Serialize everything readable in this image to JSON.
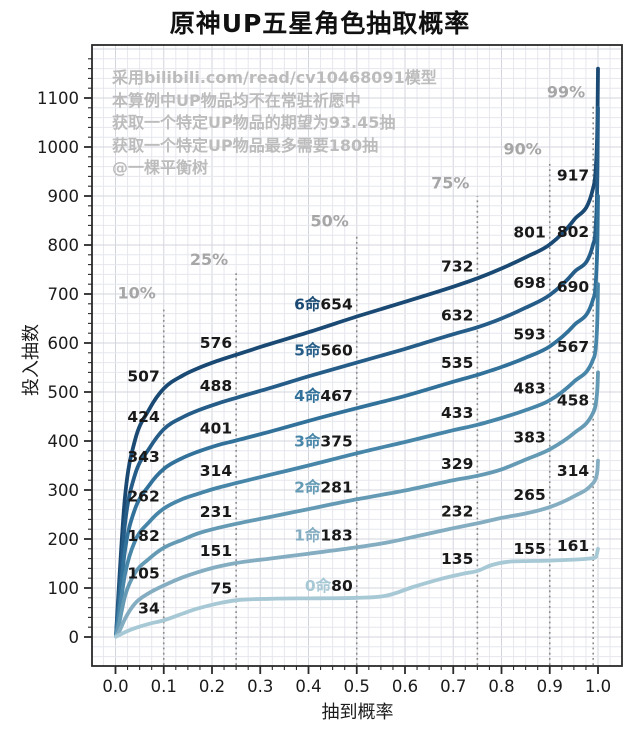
{
  "title": "原神UP五星角色抽取概率",
  "watermark": {
    "line1": "采用bilibili.com/read/cv10468091模型",
    "line2": "本算例中UP物品均不在常驻祈愿中",
    "line3": "获取一个特定UP物品的期望为93.45抽",
    "line4": "获取一个特定UP物品最多需要180抽",
    "line5": "@一棵平衡树"
  },
  "style": {
    "grid_minor": "#e6e7ee",
    "grid_major": "#d3d5de",
    "frame": "#2a2a2a",
    "dash_line": "#8a8a8a",
    "percent_label": "#a6a6a6",
    "value_label": "#191919",
    "tick_label": "#1b1b1b"
  },
  "chart_data": {
    "type": "line",
    "title": "原神UP五星角色抽取概率",
    "xlabel": "抽到概率",
    "ylabel": "投入抽数",
    "xlim": [
      0,
      1.05
    ],
    "ylim": [
      0,
      1210
    ],
    "grid": "minor+major on",
    "legend_position": "inline curve labels at 50% line",
    "x_ticks": [
      "0.0",
      "0.1",
      "0.2",
      "0.3",
      "0.4",
      "0.5",
      "0.6",
      "0.7",
      "0.8",
      "0.9",
      "1.0"
    ],
    "y_ticks": [
      0,
      100,
      200,
      300,
      400,
      500,
      600,
      700,
      800,
      900,
      1000,
      1100
    ],
    "percentile_lines": [
      {
        "p": 0.1,
        "label": "10%"
      },
      {
        "p": 0.25,
        "label": "25%"
      },
      {
        "p": 0.5,
        "label": "50%"
      },
      {
        "p": 0.75,
        "label": "75%"
      },
      {
        "p": 0.9,
        "label": "90%"
      },
      {
        "p": 0.99,
        "label": "99%"
      }
    ],
    "series": [
      {
        "name": "0命",
        "color": "#a7c8d5",
        "values_at_percentiles": [
          34,
          75,
          80,
          135,
          155,
          161
        ],
        "points": [
          [
            0.001,
            1
          ],
          [
            0.008,
            4
          ],
          [
            0.02,
            10
          ],
          [
            0.04,
            18
          ],
          [
            0.07,
            27
          ],
          [
            0.1,
            34
          ],
          [
            0.14,
            48
          ],
          [
            0.17,
            58
          ],
          [
            0.21,
            68
          ],
          [
            0.25,
            75
          ],
          [
            0.32,
            78
          ],
          [
            0.42,
            79
          ],
          [
            0.5,
            80
          ],
          [
            0.56,
            84
          ],
          [
            0.62,
            103
          ],
          [
            0.68,
            120
          ],
          [
            0.72,
            129
          ],
          [
            0.75,
            135
          ],
          [
            0.78,
            147
          ],
          [
            0.82,
            154
          ],
          [
            0.86,
            155
          ],
          [
            0.9,
            156
          ],
          [
            0.95,
            158
          ],
          [
            0.99,
            161
          ],
          [
            0.996,
            164
          ],
          [
            1,
            180
          ]
        ]
      },
      {
        "name": "1命",
        "color": "#84adc1",
        "values_at_percentiles": [
          105,
          151,
          183,
          232,
          265,
          314
        ],
        "points": [
          [
            0.001,
            1
          ],
          [
            0.008,
            12
          ],
          [
            0.02,
            38
          ],
          [
            0.04,
            68
          ],
          [
            0.07,
            90
          ],
          [
            0.1,
            105
          ],
          [
            0.14,
            122
          ],
          [
            0.17,
            132
          ],
          [
            0.21,
            143
          ],
          [
            0.25,
            151
          ],
          [
            0.32,
            160
          ],
          [
            0.4,
            170
          ],
          [
            0.5,
            183
          ],
          [
            0.57,
            194
          ],
          [
            0.63,
            207
          ],
          [
            0.7,
            222
          ],
          [
            0.75,
            232
          ],
          [
            0.8,
            243
          ],
          [
            0.85,
            252
          ],
          [
            0.9,
            265
          ],
          [
            0.95,
            287
          ],
          [
            0.99,
            314
          ],
          [
            0.995,
            323
          ],
          [
            0.999,
            342
          ],
          [
            1,
            360
          ]
        ]
      },
      {
        "name": "2命",
        "color": "#659ab5",
        "values_at_percentiles": [
          182,
          231,
          281,
          329,
          383,
          458
        ],
        "points": [
          [
            0.001,
            1
          ],
          [
            0.008,
            30
          ],
          [
            0.02,
            85
          ],
          [
            0.04,
            130
          ],
          [
            0.07,
            160
          ],
          [
            0.1,
            182
          ],
          [
            0.14,
            199
          ],
          [
            0.17,
            211
          ],
          [
            0.21,
            222
          ],
          [
            0.25,
            231
          ],
          [
            0.32,
            245
          ],
          [
            0.4,
            261
          ],
          [
            0.5,
            281
          ],
          [
            0.6,
            299
          ],
          [
            0.7,
            320
          ],
          [
            0.75,
            329
          ],
          [
            0.8,
            342
          ],
          [
            0.85,
            362
          ],
          [
            0.9,
            383
          ],
          [
            0.95,
            416
          ],
          [
            0.99,
            458
          ],
          [
            0.995,
            474
          ],
          [
            0.999,
            512
          ],
          [
            1,
            540
          ]
        ]
      },
      {
        "name": "3命",
        "color": "#4886a9",
        "values_at_percentiles": [
          262,
          314,
          375,
          433,
          483,
          567
        ],
        "points": [
          [
            0.001,
            1
          ],
          [
            0.008,
            50
          ],
          [
            0.02,
            130
          ],
          [
            0.04,
            195
          ],
          [
            0.07,
            235
          ],
          [
            0.1,
            262
          ],
          [
            0.14,
            282
          ],
          [
            0.17,
            292
          ],
          [
            0.21,
            304
          ],
          [
            0.25,
            314
          ],
          [
            0.32,
            331
          ],
          [
            0.4,
            350
          ],
          [
            0.5,
            375
          ],
          [
            0.6,
            398
          ],
          [
            0.7,
            422
          ],
          [
            0.75,
            433
          ],
          [
            0.8,
            447
          ],
          [
            0.85,
            463
          ],
          [
            0.9,
            483
          ],
          [
            0.95,
            521
          ],
          [
            0.99,
            567
          ],
          [
            0.995,
            588
          ],
          [
            0.999,
            660
          ],
          [
            1,
            720
          ]
        ]
      },
      {
        "name": "4命",
        "color": "#31719a",
        "values_at_percentiles": [
          343,
          401,
          467,
          535,
          593,
          690
        ],
        "points": [
          [
            0.001,
            2
          ],
          [
            0.008,
            70
          ],
          [
            0.02,
            180
          ],
          [
            0.04,
            260
          ],
          [
            0.07,
            310
          ],
          [
            0.1,
            343
          ],
          [
            0.14,
            366
          ],
          [
            0.17,
            378
          ],
          [
            0.21,
            391
          ],
          [
            0.25,
            401
          ],
          [
            0.32,
            419
          ],
          [
            0.4,
            441
          ],
          [
            0.5,
            467
          ],
          [
            0.6,
            492
          ],
          [
            0.7,
            521
          ],
          [
            0.75,
            535
          ],
          [
            0.8,
            551
          ],
          [
            0.85,
            570
          ],
          [
            0.9,
            593
          ],
          [
            0.95,
            636
          ],
          [
            0.99,
            690
          ],
          [
            0.995,
            718
          ],
          [
            0.999,
            820
          ],
          [
            1,
            900
          ]
        ]
      },
      {
        "name": "5命",
        "color": "#255d88",
        "values_at_percentiles": [
          424,
          488,
          560,
          632,
          698,
          802
        ],
        "points": [
          [
            0.001,
            2
          ],
          [
            0.008,
            95
          ],
          [
            0.02,
            235
          ],
          [
            0.04,
            330
          ],
          [
            0.07,
            385
          ],
          [
            0.1,
            424
          ],
          [
            0.14,
            449
          ],
          [
            0.17,
            462
          ],
          [
            0.21,
            476
          ],
          [
            0.25,
            488
          ],
          [
            0.32,
            508
          ],
          [
            0.4,
            532
          ],
          [
            0.5,
            560
          ],
          [
            0.6,
            588
          ],
          [
            0.7,
            618
          ],
          [
            0.75,
            632
          ],
          [
            0.8,
            650
          ],
          [
            0.85,
            672
          ],
          [
            0.9,
            698
          ],
          [
            0.95,
            744
          ],
          [
            0.99,
            802
          ],
          [
            0.995,
            835
          ],
          [
            0.999,
            960
          ],
          [
            1,
            1080
          ]
        ]
      },
      {
        "name": "6命",
        "color": "#1a4a73",
        "values_at_percentiles": [
          507,
          576,
          654,
          732,
          801,
          917
        ],
        "points": [
          [
            0.001,
            2
          ],
          [
            0.008,
            120
          ],
          [
            0.02,
            290
          ],
          [
            0.04,
            400
          ],
          [
            0.07,
            465
          ],
          [
            0.1,
            507
          ],
          [
            0.14,
            534
          ],
          [
            0.17,
            548
          ],
          [
            0.21,
            563
          ],
          [
            0.25,
            576
          ],
          [
            0.32,
            598
          ],
          [
            0.4,
            622
          ],
          [
            0.5,
            654
          ],
          [
            0.6,
            684
          ],
          [
            0.7,
            715
          ],
          [
            0.75,
            732
          ],
          [
            0.8,
            752
          ],
          [
            0.85,
            775
          ],
          [
            0.9,
            801
          ],
          [
            0.95,
            851
          ],
          [
            0.99,
            917
          ],
          [
            0.995,
            952
          ],
          [
            0.999,
            1060
          ],
          [
            1,
            1160
          ]
        ]
      }
    ]
  }
}
